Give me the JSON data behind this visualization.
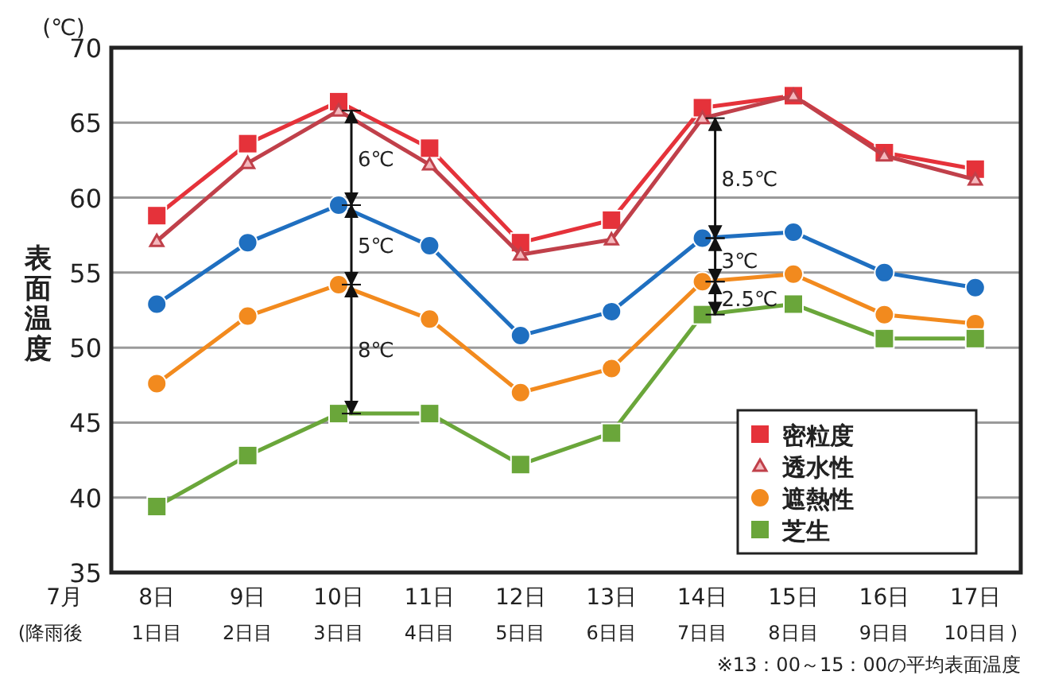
{
  "chart_data": {
    "type": "line",
    "ylabel": "表面温度",
    "categories": [
      "8日\n1日目",
      "9日\n2日目",
      "10日\n3日目",
      "11日\n4日目",
      "12日\n5日目",
      "13日\n6日目",
      "14日\n7日目",
      "15日\n8日目",
      "16日\n9日目",
      "17日\n10日目"
    ],
    "ylim": [
      35,
      70
    ],
    "yticks": [
      35,
      40,
      45,
      50,
      55,
      60,
      65,
      70
    ],
    "grid": "y",
    "legend": "bottom right",
    "series": [
      {
        "name": "密粒度",
        "color": "#e5323a",
        "marker": "square",
        "values": [
          58.8,
          63.6,
          66.4,
          63.3,
          57.0,
          58.5,
          66.0,
          66.8,
          63.0,
          61.9
        ]
      },
      {
        "name": "透水性",
        "color": "#c0404a",
        "marker": "triangle",
        "values": [
          57.1,
          62.3,
          65.8,
          62.2,
          56.2,
          57.2,
          65.3,
          66.8,
          62.8,
          61.2
        ]
      },
      {
        "name": "遮熱性",
        "color": "#f28a1e",
        "marker": "circle",
        "values": [
          47.6,
          52.1,
          54.2,
          51.9,
          47.0,
          48.6,
          54.4,
          54.9,
          52.2,
          51.6
        ]
      },
      {
        "color": "#1f6fc0",
        "marker": "circle",
        "values": [
          52.9,
          57.0,
          59.5,
          56.8,
          50.8,
          52.4,
          57.3,
          57.7,
          55.0,
          54.0
        ]
      },
      {
        "name": "芝生",
        "color": "#6aa63a",
        "marker": "square",
        "values": [
          39.4,
          42.8,
          45.6,
          45.6,
          42.2,
          44.3,
          52.2,
          52.9,
          50.6,
          50.6
        ]
      }
    ],
    "annotations": [
      "(℃)",
      "7月",
      "(降雨後",
      ")",
      "※13：00～15：00の平均表面温度",
      {
        "text": "6℃",
        "x": "10日\n3日目",
        "y": 59.5
      },
      {
        "text": "5℃",
        "x": "10日\n3日目",
        "y": 54.2
      },
      {
        "text": "8℃",
        "x": "10日\n3日目",
        "y": 45.6
      },
      {
        "text": "8.5℃",
        "x": "14日\n7日目",
        "y": 57.3
      },
      {
        "text": "3℃",
        "x": "14日\n7日目",
        "y": 54.4
      },
      {
        "text": "2.5℃",
        "x": "14日\n7日目",
        "y": 52.2
      }
    ]
  }
}
